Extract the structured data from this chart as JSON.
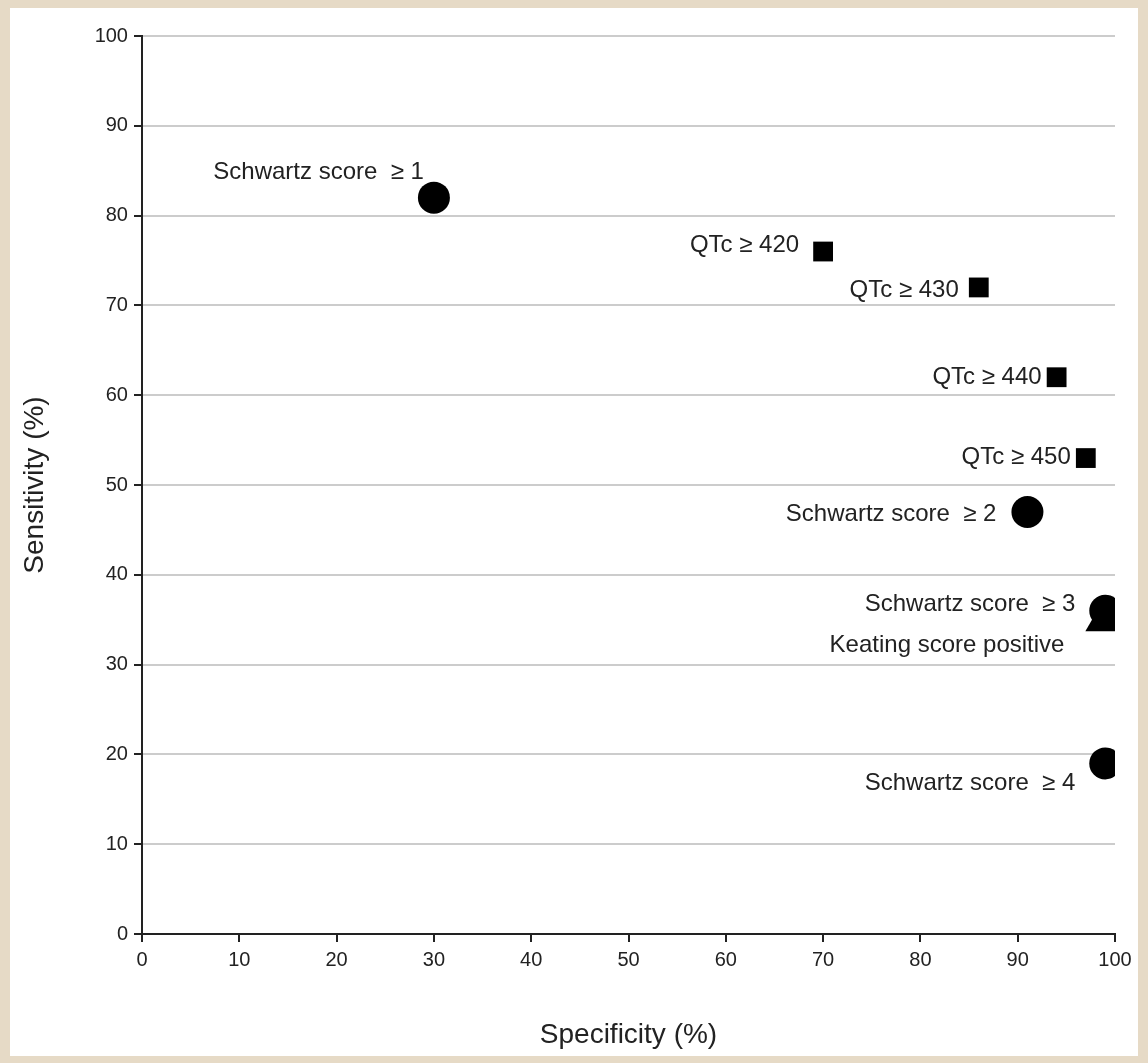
{
  "chart_data": {
    "type": "scatter",
    "xlabel": "Specificity (%)",
    "ylabel": "Sensitivity (%)",
    "xlim": [
      0,
      100
    ],
    "xticks": [
      0,
      10,
      20,
      30,
      40,
      50,
      60,
      70,
      80,
      90,
      100
    ],
    "ylim": [
      0,
      100
    ],
    "yticks": [
      0,
      10,
      20,
      30,
      40,
      50,
      60,
      70,
      80,
      90,
      100
    ],
    "grid": "y",
    "legend": false,
    "series": [
      {
        "color": "#000000",
        "marker": "circle",
        "x": [
          30,
          91,
          99,
          99
        ],
        "values": [
          82,
          47,
          36,
          19
        ]
      },
      {
        "color": "#000000",
        "marker": "square",
        "x": [
          70,
          86,
          94,
          97
        ],
        "values": [
          76,
          72,
          62,
          53
        ]
      },
      {
        "color": "#000000",
        "marker": "triangle",
        "x": [
          99
        ],
        "values": [
          35
        ]
      }
    ],
    "annotations": [
      {
        "text": "Schwartz score  ≥ 1",
        "x": 30,
        "y": 82
      },
      {
        "text": "QTc ≥ 420",
        "x": 70,
        "y": 76
      },
      {
        "text": "QTc ≥ 430",
        "x": 86,
        "y": 72
      },
      {
        "text": "QTc ≥ 440",
        "x": 94,
        "y": 62
      },
      {
        "text": "QTc ≥ 450",
        "x": 97,
        "y": 53
      },
      {
        "text": "Schwartz score  ≥ 2",
        "x": 91,
        "y": 47
      },
      {
        "text": "Schwartz score  ≥ 3",
        "x": 99,
        "y": 36
      },
      "Keating score positive",
      {
        "text": "Schwartz score  ≥ 4",
        "x": 99,
        "y": 19
      }
    ]
  }
}
